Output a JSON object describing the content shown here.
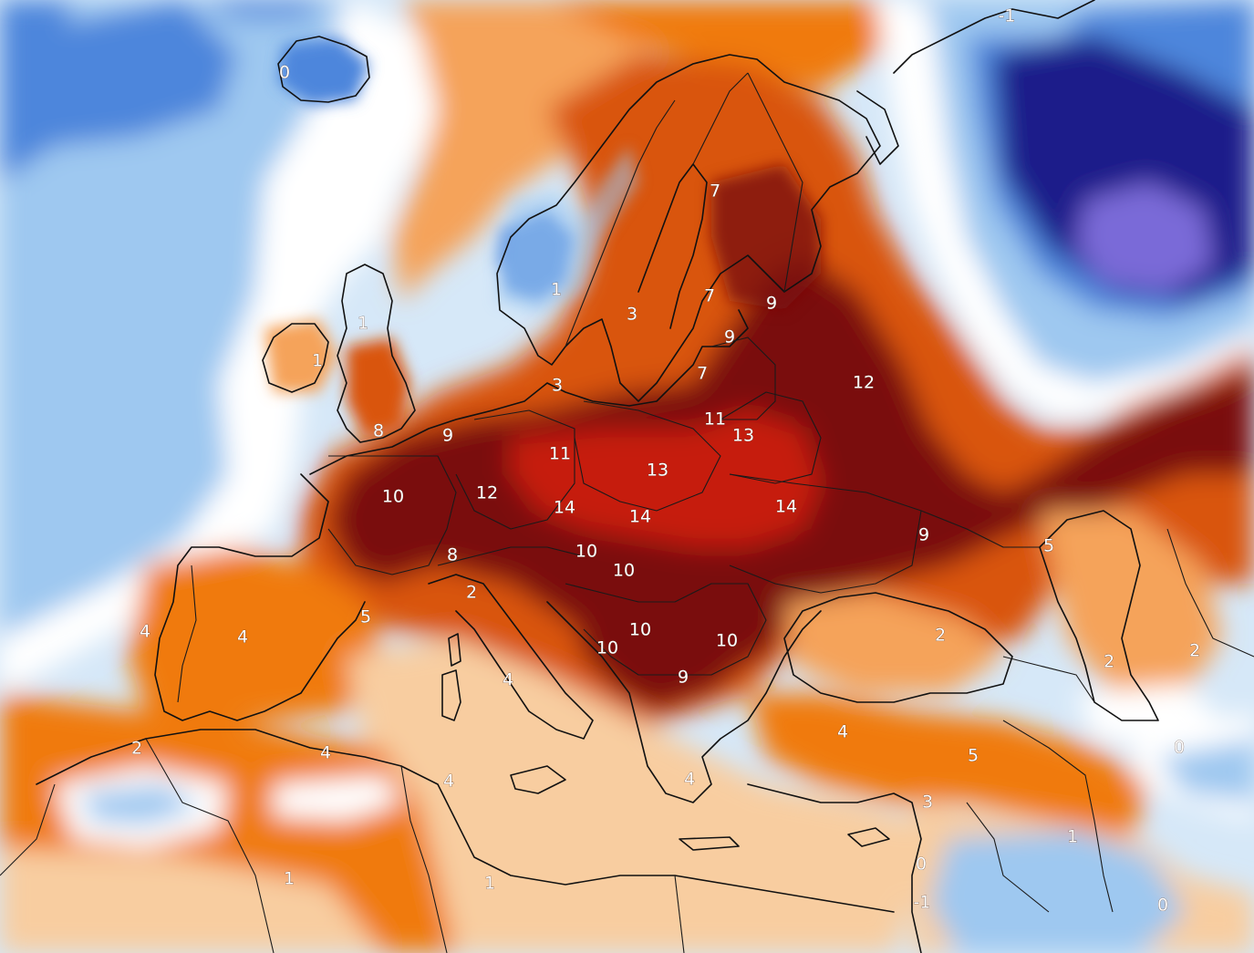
{
  "map": {
    "type": "temperature-anomaly-map",
    "palette": {
      "deep_red": "#7a0a0a",
      "dark_red": "#9c1408",
      "red": "#c61a10",
      "dark_orange": "#d9540a",
      "orange": "#f07a0f",
      "light_orange": "#f5a35a",
      "pale_orange": "#f8cda0",
      "white": "#ffffff",
      "pale_blue": "#d6e8f8",
      "light_blue": "#9ec8f0",
      "blue": "#4d86dc",
      "dark_blue": "#1f3fb0",
      "navy": "#1a1f8a",
      "purple": "#7a6ad8",
      "land_outline": "#111111"
    },
    "labels": [
      {
        "id": "iceland",
        "text": "0"
      },
      {
        "id": "norway-south",
        "text": "1"
      },
      {
        "id": "sweden-south",
        "text": "3"
      },
      {
        "id": "denmark",
        "text": "3"
      },
      {
        "id": "scotland",
        "text": "1"
      },
      {
        "id": "ireland",
        "text": "1"
      },
      {
        "id": "england",
        "text": "8"
      },
      {
        "id": "benelux",
        "text": "9"
      },
      {
        "id": "finland-north",
        "text": "7"
      },
      {
        "id": "finland-south",
        "text": "7"
      },
      {
        "id": "karelia",
        "text": "9"
      },
      {
        "id": "estonia",
        "text": "9"
      },
      {
        "id": "latvia",
        "text": "7"
      },
      {
        "id": "russia-west",
        "text": "12"
      },
      {
        "id": "lithuania",
        "text": "11"
      },
      {
        "id": "belarus",
        "text": "13"
      },
      {
        "id": "germany-north",
        "text": "11"
      },
      {
        "id": "poland",
        "text": "13"
      },
      {
        "id": "france",
        "text": "10"
      },
      {
        "id": "germany-south",
        "text": "12"
      },
      {
        "id": "czechia",
        "text": "14"
      },
      {
        "id": "slovakia",
        "text": "14"
      },
      {
        "id": "ukraine",
        "text": "14"
      },
      {
        "id": "russia-south",
        "text": "9"
      },
      {
        "id": "switzerland",
        "text": "8"
      },
      {
        "id": "italy-north",
        "text": "2"
      },
      {
        "id": "austria",
        "text": "10"
      },
      {
        "id": "hungary",
        "text": "10"
      },
      {
        "id": "serbia",
        "text": "10"
      },
      {
        "id": "bosnia",
        "text": "10"
      },
      {
        "id": "romania",
        "text": "10"
      },
      {
        "id": "bulgaria",
        "text": "9"
      },
      {
        "id": "spain-north",
        "text": "5"
      },
      {
        "id": "portugal",
        "text": "4"
      },
      {
        "id": "spain-central",
        "text": "4"
      },
      {
        "id": "italy-central",
        "text": "4"
      },
      {
        "id": "greece",
        "text": "4"
      },
      {
        "id": "turkey-west",
        "text": "4"
      },
      {
        "id": "turkey-east",
        "text": "5"
      },
      {
        "id": "black-sea",
        "text": "2"
      },
      {
        "id": "caspian-west",
        "text": "5"
      },
      {
        "id": "caucasus",
        "text": "2"
      },
      {
        "id": "caspian-east",
        "text": "2"
      },
      {
        "id": "iran-north",
        "text": "0"
      },
      {
        "id": "morocco",
        "text": "2"
      },
      {
        "id": "algeria",
        "text": "4"
      },
      {
        "id": "tunisia",
        "text": "4"
      },
      {
        "id": "sahara-west",
        "text": "1"
      },
      {
        "id": "libya",
        "text": "1"
      },
      {
        "id": "syria",
        "text": "3"
      },
      {
        "id": "iraq",
        "text": "1"
      },
      {
        "id": "lebanon",
        "text": "0"
      },
      {
        "id": "israel",
        "text": "-1"
      },
      {
        "id": "arabia",
        "text": "0"
      },
      {
        "id": "arctic-russia",
        "text": "-1"
      }
    ]
  }
}
